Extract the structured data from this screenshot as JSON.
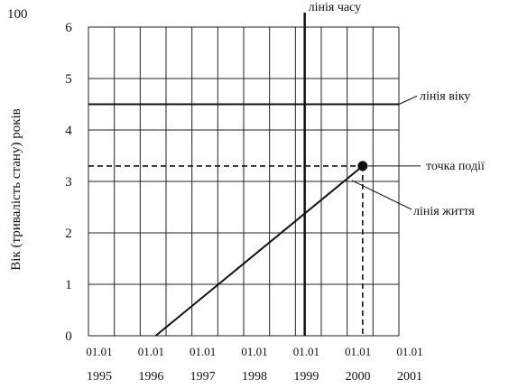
{
  "diagram": {
    "corner_label": "100",
    "y_axis_title": "Вік (тривалість стану) років",
    "y_ticks": [
      "0",
      "1",
      "2",
      "3",
      "4",
      "5",
      "6"
    ],
    "x_ticks": [
      {
        "date": "01.01",
        "year": "1995"
      },
      {
        "date": "01.01",
        "year": "1996"
      },
      {
        "date": "01.01",
        "year": "1997"
      },
      {
        "date": "01.01",
        "year": "1998"
      },
      {
        "date": "01.01",
        "year": "1999"
      },
      {
        "date": "01.01",
        "year": "2000"
      },
      {
        "date": "01.01",
        "year": "2001"
      }
    ],
    "annotations": {
      "time_line": "лінія часу",
      "age_line": "лінія віку",
      "event_point": "точка події",
      "life_line": "лінія життя"
    },
    "lines": {
      "age_line_value": 4.5,
      "time_line_year": 1999.18,
      "life_line_start": {
        "year": 1996.3,
        "age": 0
      },
      "event_point": {
        "year": 2000.3,
        "age": 3.3
      }
    },
    "x_range": [
      1995,
      2001
    ],
    "y_range": [
      0,
      6
    ]
  }
}
